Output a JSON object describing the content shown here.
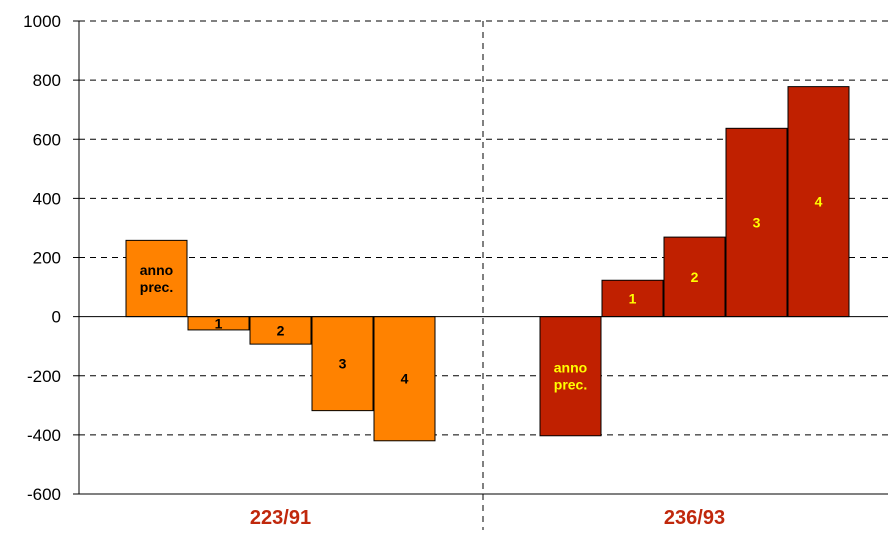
{
  "chart_data": {
    "type": "bar",
    "ylim": [
      -600,
      1000
    ],
    "yticks": [
      -600,
      -400,
      -200,
      0,
      200,
      400,
      600,
      800,
      1000
    ],
    "yticklabels": [
      "-600",
      "-400",
      "-200",
      "0",
      "200",
      "400",
      "600",
      "800",
      "1000"
    ],
    "grid": true,
    "groups": [
      {
        "label": "223/91",
        "color": "#FF8200",
        "label_color": "#C0280C",
        "bar_text_color": "#000000",
        "bars": [
          {
            "label": "anno prec.",
            "value": 258
          },
          {
            "label": "1",
            "value": -45
          },
          {
            "label": "2",
            "value": -93
          },
          {
            "label": "3",
            "value": -318
          },
          {
            "label": "4",
            "value": -420
          }
        ]
      },
      {
        "label": "236/93",
        "color": "#C02000",
        "label_color": "#C0280C",
        "bar_text_color": "#FFFF00",
        "bars": [
          {
            "label": "anno prec.",
            "value": -403
          },
          {
            "label": "1",
            "value": 123
          },
          {
            "label": "2",
            "value": 269
          },
          {
            "label": "3",
            "value": 637
          },
          {
            "label": "4",
            "value": 778
          }
        ]
      }
    ]
  }
}
